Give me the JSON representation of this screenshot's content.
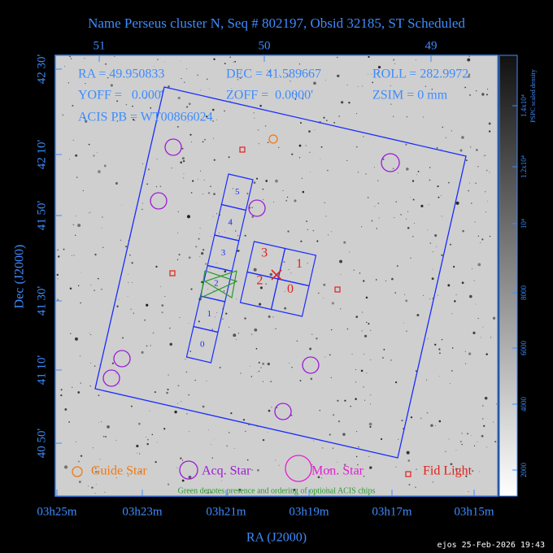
{
  "title": "Name Perseus cluster N, Seq # 802197, Obsid 32185, ST Scheduled",
  "header": {
    "ra": "RA = 49.950833",
    "dec": "DEC = 41.589667",
    "roll": "ROLL = 282.9972",
    "yoff": "YOFF =   0.000'",
    "zoff": "ZOFF =  0.0000'",
    "zsim": "ZSIM = 0 mm",
    "acis_pb": "ACIS PB = WT00866024"
  },
  "axes": {
    "x_label": "RA (J2000)",
    "y_label": "Dec (J2000)",
    "top_ticks": [
      "51",
      "50",
      "49"
    ],
    "x_ticks": [
      "03h25m",
      "03h23m",
      "03h21m",
      "03h19m",
      "03h17m",
      "03h15m"
    ],
    "y_ticks": [
      "42 30'",
      "42 10'",
      "41 50'",
      "41 30'",
      "41 10'",
      "40 50'"
    ]
  },
  "chips": {
    "acis_s": [
      "0",
      "1",
      "2",
      "3",
      "4",
      "5"
    ],
    "acis_i": [
      "3",
      "1",
      "2",
      "0"
    ]
  },
  "legend": {
    "guide": "Guide Star",
    "acq": "Acq. Star",
    "mon": "Mon. Star",
    "fid": "Fid Light",
    "note": "Green denotes presence and ordering of optional ACIS chips"
  },
  "colorbar": {
    "label": "PSPC scaled density",
    "ticks": [
      "2000",
      "4000",
      "6000",
      "8000",
      "10⁴",
      "1.2x10⁴",
      "1.4x10⁴"
    ]
  },
  "footer": "ejos 25-Feb-2026 19:43"
}
